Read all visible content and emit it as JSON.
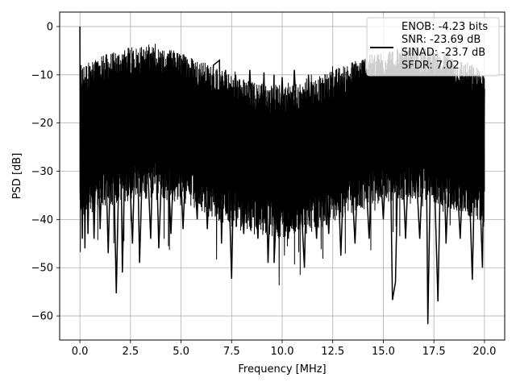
{
  "chart_data": {
    "type": "line",
    "xlabel": "Frequency [MHz]",
    "ylabel": "PSD [dB]",
    "xlim": [
      -1.0,
      21.0
    ],
    "ylim": [
      -65.0,
      3.0
    ],
    "xticks": [
      0.0,
      2.5,
      5.0,
      7.5,
      10.0,
      12.5,
      15.0,
      17.5,
      20.0
    ],
    "xtick_labels": [
      "0.0",
      "2.5",
      "5.0",
      "7.5",
      "10.0",
      "12.5",
      "15.0",
      "17.5",
      "20.0"
    ],
    "yticks": [
      0,
      -10,
      -20,
      -30,
      -40,
      -50,
      -60
    ],
    "ytick_labels": [
      "0",
      "−10",
      "−20",
      "−30",
      "−40",
      "−50",
      "−60"
    ],
    "grid": true,
    "legend_position": "top-right",
    "legend": [
      "ENOB: -4.23 bits",
      "SNR: -23.69 dB",
      "SINAD: -23.7 dB",
      "SFDR: 7.02"
    ],
    "series": [
      {
        "color": "#000000",
        "description": "dense noise floor spanning roughly -20 to -35 dB with spikes, peak at 0 dB near 0 MHz",
        "points": [
          [
            0.0,
            0.0
          ],
          [
            0.02,
            -36.0
          ],
          [
            0.05,
            -8.0
          ],
          [
            0.08,
            -30.0
          ],
          [
            0.12,
            -44.0
          ],
          [
            0.18,
            -14.0
          ],
          [
            0.25,
            -46.0
          ],
          [
            0.3,
            -18.0
          ],
          [
            0.4,
            -43.0
          ],
          [
            0.55,
            -13.0
          ],
          [
            0.7,
            -44.0
          ],
          [
            0.85,
            -16.0
          ],
          [
            1.0,
            -42.0
          ],
          [
            1.2,
            -15.0
          ],
          [
            1.4,
            -47.0
          ],
          [
            1.6,
            -14.0
          ],
          [
            1.8,
            -55.3
          ],
          [
            2.0,
            -15.0
          ],
          [
            2.1,
            -51.0
          ],
          [
            2.3,
            -13.5
          ],
          [
            2.6,
            -45.0
          ],
          [
            2.8,
            -14.0
          ],
          [
            2.95,
            -49.0
          ],
          [
            3.2,
            -13.0
          ],
          [
            3.5,
            -44.0
          ],
          [
            3.7,
            -12.0
          ],
          [
            3.9,
            -46.0
          ],
          [
            4.2,
            -12.0
          ],
          [
            4.5,
            -43.0
          ],
          [
            4.8,
            -11.5
          ],
          [
            5.1,
            -42.0
          ],
          [
            5.4,
            -11.0
          ],
          [
            5.8,
            -40.0
          ],
          [
            6.0,
            -9.5
          ],
          [
            6.3,
            -42.0
          ],
          [
            6.6,
            -8.0
          ],
          [
            6.9,
            -7.0
          ],
          [
            7.0,
            -45.0
          ],
          [
            7.2,
            -9.0
          ],
          [
            7.5,
            -52.3
          ],
          [
            7.7,
            -10.0
          ],
          [
            8.1,
            -43.0
          ],
          [
            8.4,
            -9.0
          ],
          [
            8.8,
            -44.0
          ],
          [
            9.1,
            -9.5
          ],
          [
            9.3,
            -49.0
          ],
          [
            9.6,
            -10.0
          ],
          [
            9.6,
            -49.0
          ],
          [
            10.0,
            -10.5
          ],
          [
            10.3,
            -44.0
          ],
          [
            10.6,
            -9.0
          ],
          [
            11.1,
            -50.0
          ],
          [
            11.3,
            -10.0
          ],
          [
            11.7,
            -44.0
          ],
          [
            12.0,
            -11.0
          ],
          [
            12.3,
            -43.0
          ],
          [
            12.6,
            -11.5
          ],
          [
            12.9,
            -47.5
          ],
          [
            13.2,
            -11.0
          ],
          [
            13.6,
            -45.0
          ],
          [
            13.9,
            -12.0
          ],
          [
            14.3,
            -44.0
          ],
          [
            14.6,
            -11.0
          ],
          [
            15.0,
            -40.0
          ],
          [
            15.3,
            -12.0
          ],
          [
            15.45,
            -56.7
          ],
          [
            15.6,
            -53.0
          ],
          [
            15.8,
            -12.0
          ],
          [
            16.1,
            -44.0
          ],
          [
            16.4,
            -11.5
          ],
          [
            16.8,
            -44.0
          ],
          [
            17.1,
            -13.0
          ],
          [
            17.2,
            -61.7
          ],
          [
            17.4,
            -13.0
          ],
          [
            17.7,
            -57.0
          ],
          [
            17.9,
            -12.5
          ],
          [
            18.1,
            -45.0
          ],
          [
            18.4,
            -12.0
          ],
          [
            18.8,
            -44.0
          ],
          [
            19.1,
            -13.0
          ],
          [
            19.4,
            -52.5
          ],
          [
            19.6,
            -13.0
          ],
          [
            19.9,
            -50.0
          ],
          [
            20.0,
            -13.0
          ]
        ]
      }
    ]
  }
}
